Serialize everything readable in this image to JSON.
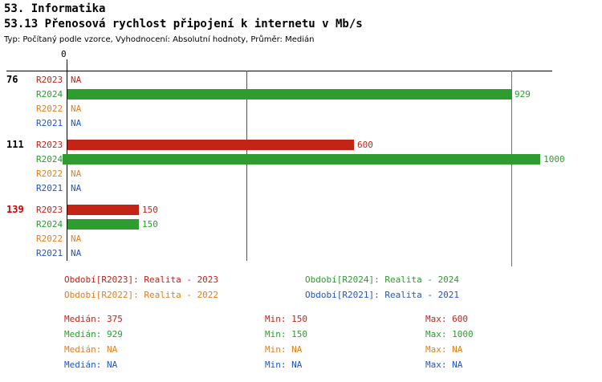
{
  "header": {
    "title": "53. Informatika",
    "subtitle": "53.13 Přenosová rychlost připojení k internetu v Mb/s",
    "meta": "Typ: Počítaný podle vzorce, Vyhodnocení: Absolutní hodnoty, Průměr: Medián"
  },
  "colors": {
    "r2023": "#C22418",
    "r2024": "#2E9C2E",
    "r2022": "#E2801A",
    "r2021": "#2356C0",
    "axis": "#000000",
    "highlight_group_label": "#CC0000"
  },
  "chart_data": {
    "type": "bar",
    "orientation": "horizontal",
    "title": "53.13 Přenosová rychlost připojení k internetu v Mb/s",
    "x_axis": {
      "zero_label": "0",
      "min": 0,
      "max": 1000
    },
    "gridlines": [
      {
        "name": "median-2023",
        "value": 375,
        "color_key": "r2023"
      },
      {
        "name": "median-2024",
        "value": 929,
        "color_key": "r2024"
      }
    ],
    "series_order": [
      "R2023",
      "R2024",
      "R2022",
      "R2021"
    ],
    "groups": [
      {
        "label": "76",
        "label_color": "#000000",
        "rows": [
          {
            "period": "R2023",
            "value": null,
            "display": "NA"
          },
          {
            "period": "R2024",
            "value": 929,
            "display": "929"
          },
          {
            "period": "R2022",
            "value": null,
            "display": "NA"
          },
          {
            "period": "R2021",
            "value": null,
            "display": "NA"
          }
        ]
      },
      {
        "label": "111",
        "label_color": "#000000",
        "rows": [
          {
            "period": "R2023",
            "value": 600,
            "display": "600"
          },
          {
            "period": "R2024",
            "value": 1000,
            "display": "1000"
          },
          {
            "period": "R2022",
            "value": null,
            "display": "NA"
          },
          {
            "period": "R2021",
            "value": null,
            "display": "NA"
          }
        ]
      },
      {
        "label": "139",
        "label_color": "#CC0000",
        "rows": [
          {
            "period": "R2023",
            "value": 150,
            "display": "150"
          },
          {
            "period": "R2024",
            "value": 150,
            "display": "150"
          },
          {
            "period": "R2022",
            "value": null,
            "display": "NA"
          },
          {
            "period": "R2021",
            "value": null,
            "display": "NA"
          }
        ]
      }
    ]
  },
  "legend": [
    {
      "text": "Období[R2023]: Realita - 2023",
      "color_key": "r2023"
    },
    {
      "text": "Období[R2024]: Realita - 2024",
      "color_key": "r2024"
    },
    {
      "text": "Období[R2022]: Realita - 2022",
      "color_key": "r2022"
    },
    {
      "text": "Období[R2021]: Realita - 2021",
      "color_key": "r2021"
    }
  ],
  "stats": [
    {
      "color_key": "r2023",
      "median": "Medián: 375",
      "min": "Min: 150",
      "max": "Max: 600"
    },
    {
      "color_key": "r2024",
      "median": "Medián: 929",
      "min": "Min: 150",
      "max": "Max: 1000"
    },
    {
      "color_key": "r2022",
      "median": "Medián: NA",
      "min": "Min: NA",
      "max": "Max: NA"
    },
    {
      "color_key": "r2021",
      "median": "Medián: NA",
      "min": "Min: NA",
      "max": "Max: NA"
    }
  ]
}
